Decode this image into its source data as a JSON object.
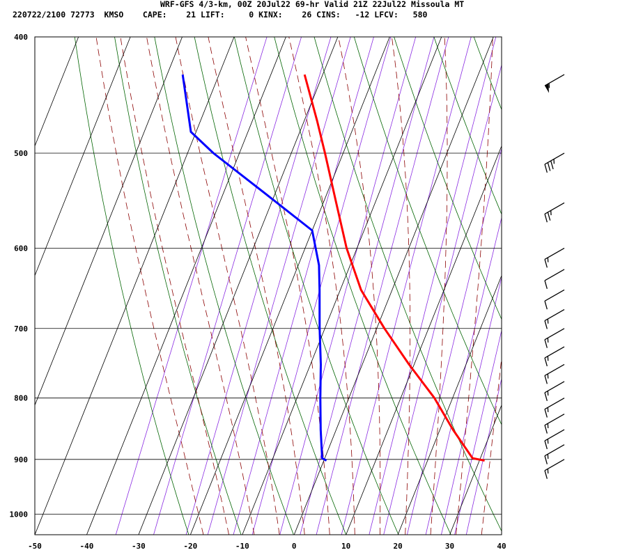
{
  "header": {
    "title": "WRF-GFS 4/3-km, 00Z 20Jul22 69-hr Valid 21Z 22Jul22 Missoula MT",
    "stats": "220722/2100 72773  KMSO    CAPE:    21 LIFT:     0 KINX:    26 CINS:   -12 LFCV:   580"
  },
  "colors": {
    "temperature": "#ff0000",
    "dewpoint": "#0000ff",
    "isotherm": "#000000",
    "isobar": "#000000",
    "dry_adiabat": "#006400",
    "moist_adiabat": "#8b0000",
    "mixing_ratio": "#8a2be2",
    "wind_barb": "#000000"
  },
  "chart_data": {
    "type": "skew-T log-P sounding",
    "xlabel": "",
    "ylabel": "",
    "xlim": [
      -50,
      40
    ],
    "ylim": [
      1040,
      400
    ],
    "y_scale": "log",
    "x_ticks": [
      -50,
      -40,
      -30,
      -20,
      -10,
      0,
      10,
      20,
      30,
      40
    ],
    "y_ticks": [
      400,
      500,
      600,
      700,
      800,
      900,
      1000
    ],
    "grid": true,
    "series": [
      {
        "id": "temperature",
        "points": [
          {
            "p": 902,
            "t": 31
          },
          {
            "p": 898,
            "t": 28.5
          },
          {
            "p": 850,
            "t": 22.5
          },
          {
            "p": 800,
            "t": 16.5
          },
          {
            "p": 750,
            "t": 9
          },
          {
            "p": 700,
            "t": 1.5
          },
          {
            "p": 650,
            "t": -6
          },
          {
            "p": 600,
            "t": -12
          },
          {
            "p": 550,
            "t": -17.5
          },
          {
            "p": 500,
            "t": -23.5
          },
          {
            "p": 470,
            "t": -27.5
          },
          {
            "p": 430,
            "t": -33.5
          }
        ]
      },
      {
        "id": "dewpoint",
        "points": [
          {
            "p": 902,
            "t": 0.5
          },
          {
            "p": 898,
            "t": -0.5
          },
          {
            "p": 850,
            "t": -3
          },
          {
            "p": 800,
            "t": -5.5
          },
          {
            "p": 750,
            "t": -8
          },
          {
            "p": 700,
            "t": -11
          },
          {
            "p": 650,
            "t": -14
          },
          {
            "p": 620,
            "t": -16
          },
          {
            "p": 580,
            "t": -20
          },
          {
            "p": 540,
            "t": -32
          },
          {
            "p": 500,
            "t": -45
          },
          {
            "p": 480,
            "t": -51
          },
          {
            "p": 430,
            "t": -57
          }
        ]
      }
    ],
    "wind_barbs": [
      {
        "p": 900,
        "kt": 15
      },
      {
        "p": 875,
        "kt": 15
      },
      {
        "p": 850,
        "kt": 15
      },
      {
        "p": 825,
        "kt": 15
      },
      {
        "p": 800,
        "kt": 15
      },
      {
        "p": 775,
        "kt": 15
      },
      {
        "p": 750,
        "kt": 15
      },
      {
        "p": 725,
        "kt": 15
      },
      {
        "p": 700,
        "kt": 15
      },
      {
        "p": 675,
        "kt": 15
      },
      {
        "p": 650,
        "kt": 10
      },
      {
        "p": 625,
        "kt": 10
      },
      {
        "p": 600,
        "kt": 15
      },
      {
        "p": 550,
        "kt": 25
      },
      {
        "p": 500,
        "kt": 35
      },
      {
        "p": 430,
        "kt": 55
      }
    ]
  }
}
